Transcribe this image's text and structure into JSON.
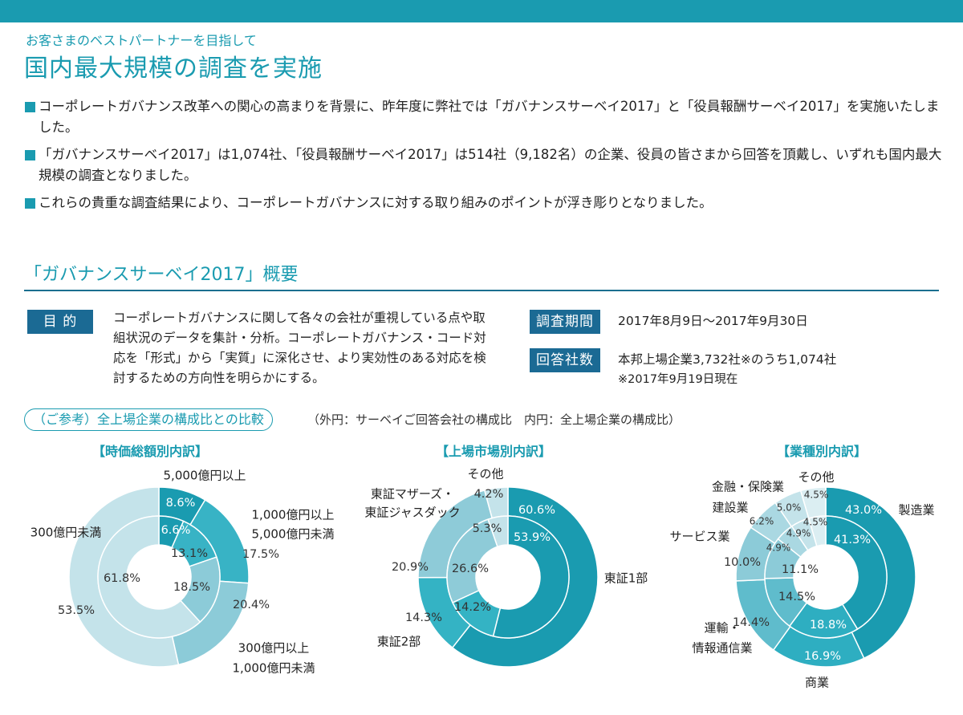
{
  "header": {
    "subtitle": "お客さまのベストパートナーを目指して",
    "title": "国内最大規模の調査を実施"
  },
  "bullets": [
    "コーポレートガバナンス改革への関心の高まりを背景に、昨年度に弊社では「ガバナンスサーベイ2017」と「役員報酬サーベイ2017」を実施いたしました。",
    "「ガバナンスサーベイ2017」は1,074社、「役員報酬サーベイ2017」は514社（9,182名）の企業、役員の皆さまから回答を頂戴し、いずれも国内最大規模の調査となりました。",
    "これらの貴重な調査結果により、コーポレートガバナンスに対する取り組みのポイントが浮き彫りとなりました。"
  ],
  "overview": {
    "title": "「ガバナンスサーベイ2017」概要",
    "purpose_label": "目 的",
    "purpose_text": "コーポレートガバナンスに関して各々の会社が重視している点や取組状況のデータを集計・分析。コーポレートガバナンス・コード対応を「形式」から「実質」に深化させ、より実効性のある対応を検討するための方向性を明らかにする。",
    "period_label": "調査期間",
    "period_text": "2017年8月9日～2017年9月30日",
    "respondents_label": "回答社数",
    "respondents_text": "本邦上場企業3,732社※のうち1,074社",
    "respondents_note": "※2017年9月19日現在"
  },
  "reference": {
    "pill": "（ご参考）全上場企業の構成比との比較",
    "note": "（外円：サーベイご回答会社の構成比　内円：全上場企業の構成比）"
  },
  "chart_data": [
    {
      "type": "pie",
      "title": "【時価総額別内訳】",
      "categories": [
        "5,000億円以上",
        "1,000億円以上 5,000億円未満",
        "300億円以上 1,000億円未満",
        "300億円未満"
      ],
      "series": [
        {
          "ring": "outer",
          "values": [
            8.6,
            17.5,
            20.4,
            53.5
          ]
        },
        {
          "ring": "inner",
          "values": [
            6.6,
            13.1,
            18.5,
            61.8
          ]
        }
      ],
      "labels": {
        "outer": [
          "8.6%",
          "17.5%",
          "20.4%",
          "53.5%"
        ],
        "inner": [
          "6.6%",
          "13.1%",
          "18.5%",
          "61.8%"
        ]
      },
      "category_labels": [
        [
          "5,000億円以上"
        ],
        [
          "1,000億円以上",
          "5,000億円未満"
        ],
        [
          "300億円以上",
          "1,000億円未満"
        ],
        [
          "300億円未満"
        ]
      ],
      "colors": [
        "#1a9bb0",
        "#38b3c5",
        "#8ccbd8",
        "#c4e3ea"
      ]
    },
    {
      "type": "pie",
      "title": "【上場市場別内訳】",
      "categories": [
        "東証1部",
        "東証2部",
        "東証マザーズ・東証ジャスダック",
        "その他"
      ],
      "series": [
        {
          "ring": "outer",
          "values": [
            60.6,
            14.3,
            20.9,
            4.2
          ]
        },
        {
          "ring": "inner",
          "values": [
            53.9,
            14.2,
            26.6,
            5.3
          ]
        }
      ],
      "labels": {
        "outer": [
          "60.6%",
          "14.3%",
          "20.9%",
          "4.2%"
        ],
        "inner": [
          "53.9%",
          "14.2%",
          "26.6%",
          "5.3%"
        ]
      },
      "category_labels": [
        [
          "東証1部"
        ],
        [
          "東証2部"
        ],
        [
          "東証マザーズ・",
          "東証ジャスダック"
        ],
        [
          "その他"
        ]
      ],
      "colors": [
        "#1a9bb0",
        "#34b3c4",
        "#8ecbd8",
        "#c4e3ea"
      ]
    },
    {
      "type": "pie",
      "title": "【業種別内訳】",
      "categories": [
        "製造業",
        "商業",
        "運輸・情報通信業",
        "サービス業",
        "建設業",
        "金融・保険業",
        "その他"
      ],
      "series": [
        {
          "ring": "outer",
          "values": [
            43.0,
            16.9,
            14.4,
            10.0,
            6.2,
            5.0,
            4.5
          ]
        },
        {
          "ring": "inner",
          "values": [
            41.3,
            18.8,
            14.5,
            11.1,
            4.9,
            4.9,
            4.5
          ]
        }
      ],
      "labels": {
        "outer": [
          "43.0%",
          "16.9%",
          "14.4%",
          "10.0%",
          "6.2%",
          "5.0%",
          "4.5%"
        ],
        "inner": [
          "41.3%",
          "18.8%",
          "14.5%",
          "11.1%",
          "4.9%",
          "4.9%",
          "4.5%"
        ]
      },
      "category_labels": [
        [
          "製造業"
        ],
        [
          "商業"
        ],
        [
          "運輸・",
          "情報通信業"
        ],
        [
          "サービス業"
        ],
        [
          "建設業"
        ],
        [
          "金融・保険業"
        ],
        [
          "その他"
        ]
      ],
      "colors": [
        "#1a9bb0",
        "#2eaec1",
        "#5fbccc",
        "#8ccbd8",
        "#aad8e2",
        "#c4e3ea",
        "#dbeef2"
      ]
    }
  ]
}
